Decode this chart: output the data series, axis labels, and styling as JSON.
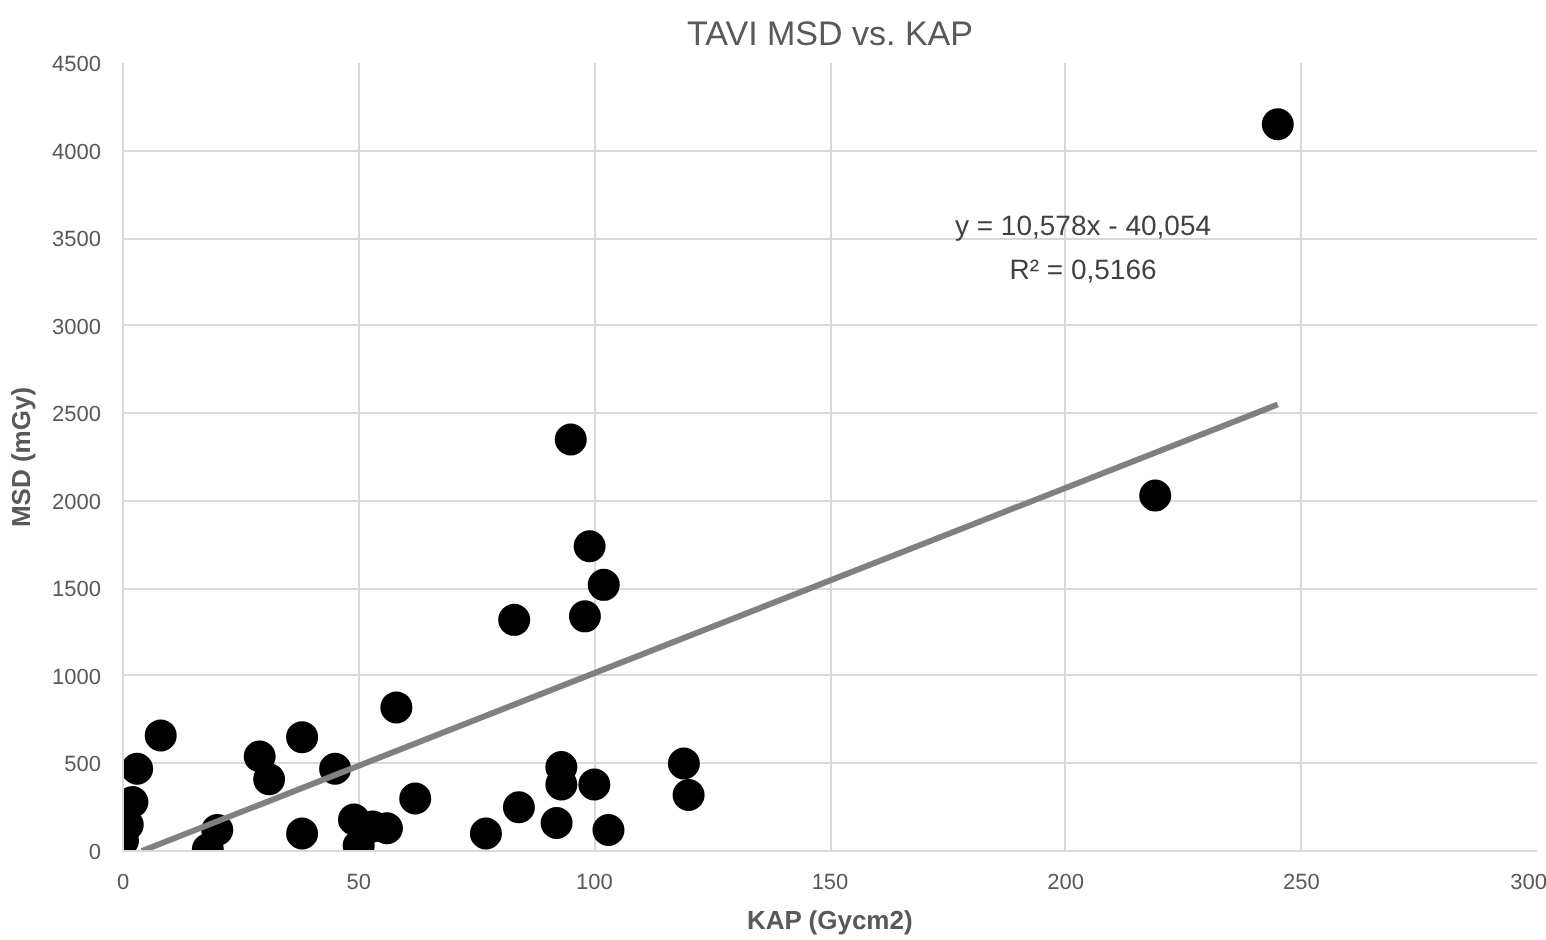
{
  "chart_data": {
    "type": "scatter",
    "title": "TAVI MSD vs. KAP",
    "xlabel": "KAP (Gycm2)",
    "ylabel": "MSD (mGy)",
    "xlim": [
      0,
      300
    ],
    "xticks": [
      0,
      50,
      100,
      150,
      200,
      250,
      300
    ],
    "ylim": [
      0,
      4500
    ],
    "yticks": [
      0,
      500,
      1000,
      1500,
      2000,
      2500,
      3000,
      3500,
      4000,
      4500
    ],
    "grid": true,
    "annotations": [
      "y = 10,578x - 40,054",
      "R² = 0,5166"
    ],
    "series": [
      {
        "color": "#000000",
        "marker": "circle",
        "x": [
          0,
          1,
          2,
          3,
          8,
          18,
          20,
          29,
          31,
          38,
          38,
          45,
          49,
          50,
          53,
          56,
          58,
          62,
          77,
          84,
          83,
          92,
          93,
          93,
          95,
          99,
          98,
          102,
          100,
          103,
          119,
          120,
          219,
          245
        ],
        "values": [
          60,
          150,
          280,
          470,
          660,
          10,
          120,
          540,
          410,
          650,
          100,
          470,
          180,
          30,
          140,
          130,
          820,
          300,
          100,
          250,
          1320,
          160,
          480,
          380,
          2350,
          1740,
          1340,
          1520,
          380,
          120,
          500,
          320,
          2030,
          4150
        ]
      },
      {
        "type": "line",
        "color": "#808080",
        "x": [
          4,
          245
        ],
        "marker": "none",
        "values": [
          0,
          2550
        ]
      }
    ]
  }
}
